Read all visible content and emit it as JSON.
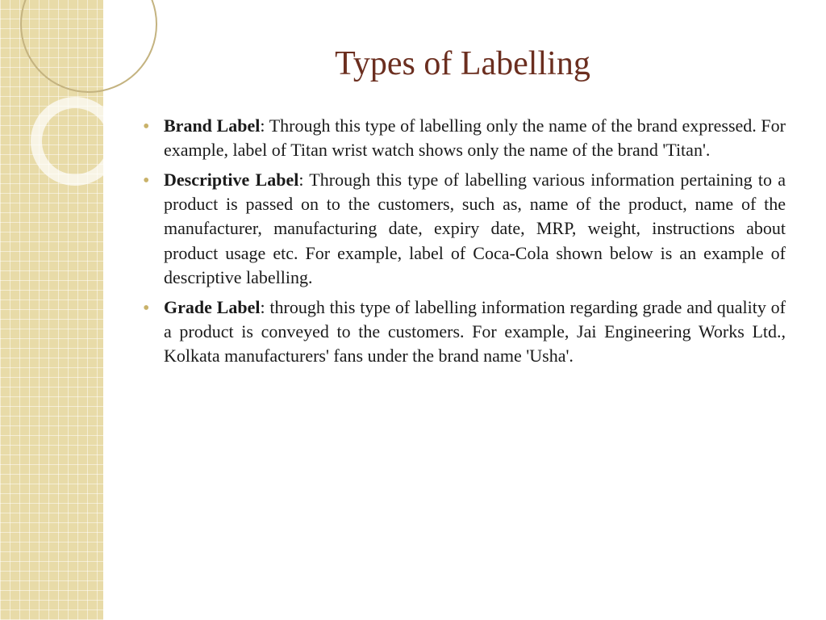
{
  "slide": {
    "title": "Types of Labelling",
    "title_color": "#6b2e1f",
    "title_fontsize": 42,
    "bullets": [
      {
        "label": "Brand Label",
        "text": ": Through this type of labelling only the name of the brand expressed. For example, label of Titan wrist watch shows only the name of the brand 'Titan'."
      },
      {
        "label": "Descriptive Label",
        "text": ": Through this type of labelling various information pertaining to a product is passed on to the customers, such as, name of the product, name of the manufacturer,  manufacturing date, expiry date, MRP, weight, instructions about product usage etc. For example, label of Coca-Cola shown below is an example of descriptive labelling."
      },
      {
        "label": "Grade Label",
        "text": ": through this type of labelling information regarding grade and quality of a product is conveyed to the customers. For example, Jai Engineering Works Ltd., Kolkata manufacturers' fans under the brand name 'Usha'."
      }
    ],
    "bullet_color": "#c9b26a",
    "body_color": "#1a1a1a",
    "body_fontsize": 22
  },
  "sidebar": {
    "background_color": "#e8dba8",
    "grid_color": "#ffffff",
    "circle_border_color": "#c4b380",
    "ring_color": "rgba(255,255,255,0.7)"
  },
  "background_color": "#ffffff"
}
